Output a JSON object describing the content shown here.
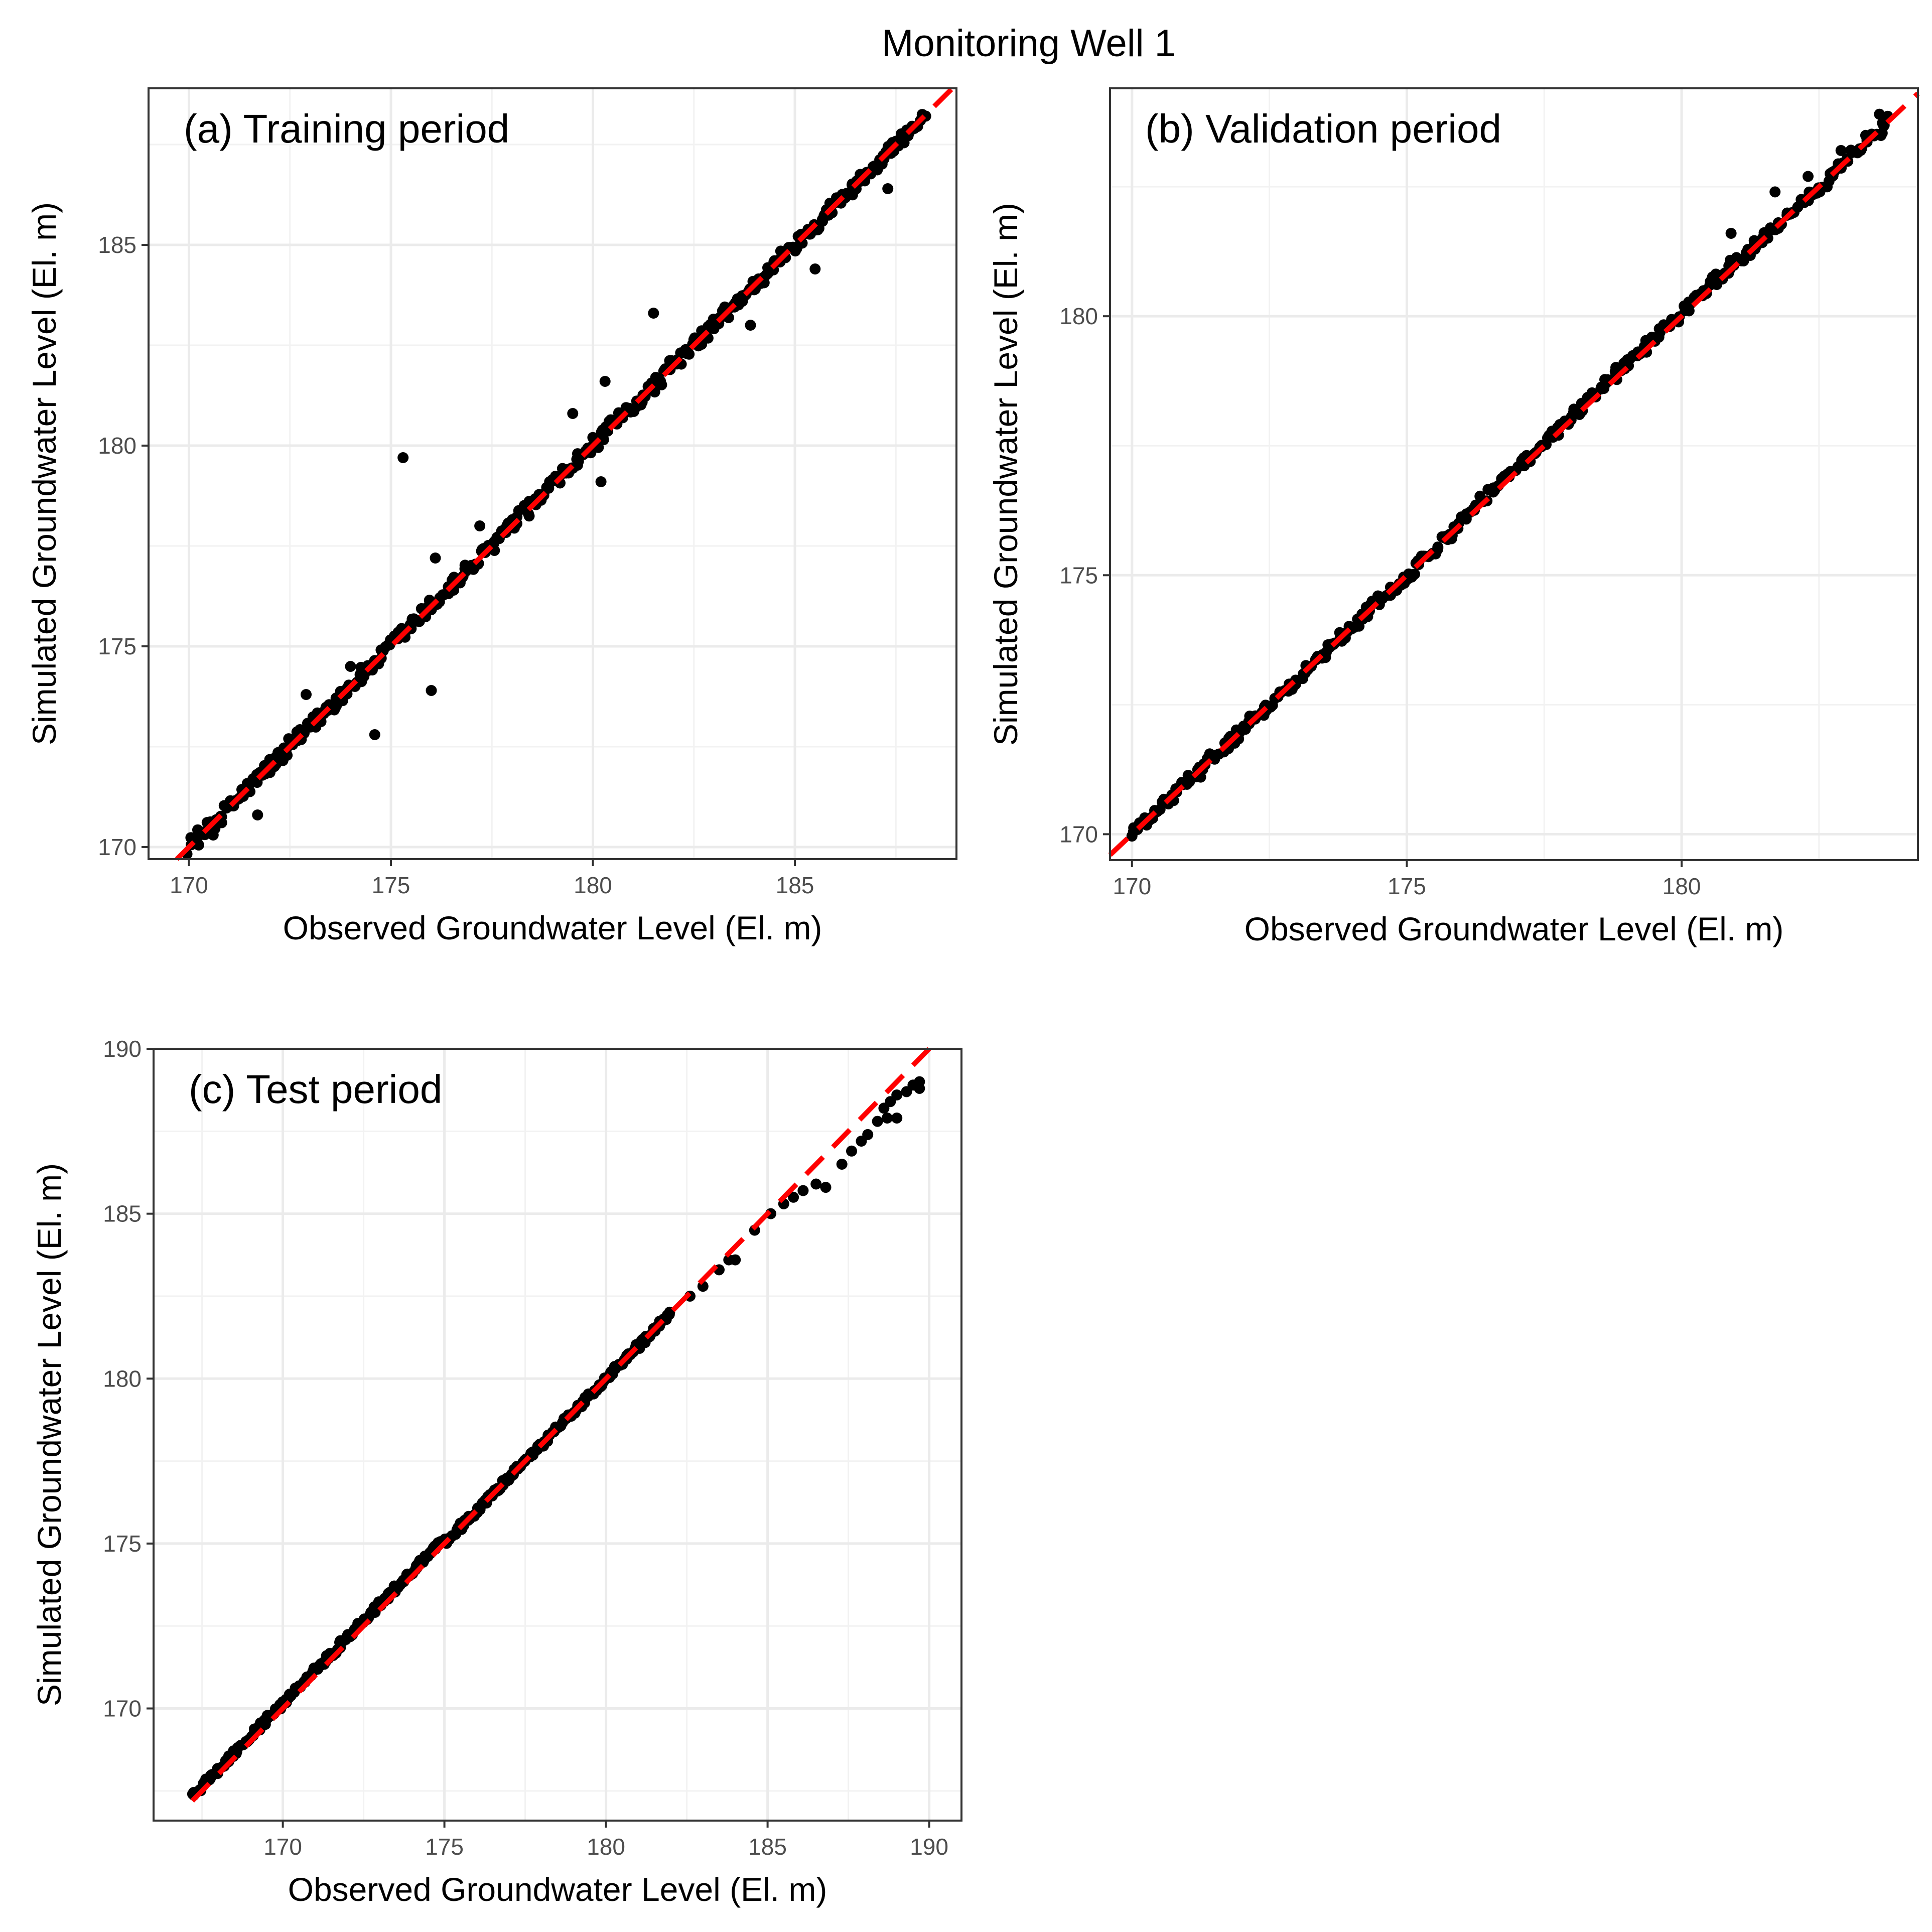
{
  "figure": {
    "title": "Monitoring Well 1"
  },
  "chart_data": [
    {
      "type": "scatter",
      "panel": "a",
      "title": "(a) Training period",
      "xlabel": "Observed Groundwater Level (El. m)",
      "ylabel": "Simulated Groundwater Level (El. m)",
      "xlim": [
        169.0,
        189.0
      ],
      "ylim": [
        169.7,
        188.9
      ],
      "xticks": [
        170,
        175,
        180,
        185
      ],
      "yticks": [
        170,
        175,
        180,
        185
      ],
      "grid": true,
      "reference_line": {
        "label": "1:1 line",
        "style": "dashed",
        "color": "#ff0000",
        "from": [
          169.0,
          169.0
        ],
        "to": [
          189.0,
          189.0
        ]
      },
      "point_color": "#000000",
      "series": [
        {
          "name": "Simulated vs Observed",
          "range": [
            170.0,
            188.2
          ],
          "scatter_amplitude": 0.18,
          "n_points": 420,
          "outliers": [
            [
              175.3,
              179.7
            ],
            [
              176.0,
              173.9
            ],
            [
              180.2,
              179.1
            ],
            [
              181.5,
              183.3
            ],
            [
              179.5,
              180.8
            ],
            [
              180.3,
              181.6
            ],
            [
              171.7,
              170.8
            ],
            [
              170.6,
              170.3
            ],
            [
              174.6,
              172.8
            ],
            [
              172.9,
              173.8
            ],
            [
              176.1,
              177.2
            ],
            [
              177.2,
              178.0
            ],
            [
              174.0,
              174.5
            ],
            [
              183.9,
              183.0
            ],
            [
              185.5,
              184.4
            ],
            [
              187.3,
              186.4
            ]
          ]
        }
      ]
    },
    {
      "type": "scatter",
      "panel": "b",
      "title": "(b) Validation period",
      "xlabel": "Observed Groundwater Level (El. m)",
      "ylabel": "Simulated Groundwater Level (El. m)",
      "xlim": [
        169.6,
        184.3
      ],
      "ylim": [
        169.5,
        184.4
      ],
      "xticks": [
        170,
        175,
        180
      ],
      "yticks": [
        170,
        175,
        180
      ],
      "grid": true,
      "reference_line": {
        "label": "1:1 line",
        "style": "dashed",
        "color": "#ff0000",
        "from": [
          169.5,
          169.5
        ],
        "to": [
          184.3,
          184.3
        ]
      },
      "point_color": "#000000",
      "series": [
        {
          "name": "Simulated vs Observed",
          "range": [
            170.0,
            183.8
          ],
          "scatter_amplitude": 0.1,
          "n_points": 380,
          "outliers": [
            [
              181.7,
              182.4
            ],
            [
              182.3,
              182.7
            ],
            [
              182.9,
              183.2
            ],
            [
              180.9,
              181.6
            ],
            [
              183.6,
              183.9
            ]
          ]
        }
      ]
    },
    {
      "type": "scatter",
      "panel": "c",
      "title": "(c) Test period",
      "xlabel": "Observed Groundwater Level (El. m)",
      "ylabel": "Simulated Groundwater Level (El. m)",
      "xlim": [
        166.0,
        191.0
      ],
      "ylim": [
        166.6,
        190.0
      ],
      "xticks": [
        170,
        175,
        180,
        185,
        190
      ],
      "yticks": [
        170,
        175,
        180,
        185,
        190
      ],
      "grid": true,
      "reference_line": {
        "label": "1:1 line",
        "style": "dashed",
        "color": "#ff0000",
        "from": [
          167.2,
          167.2
        ],
        "to": [
          190.0,
          190.0
        ]
      },
      "point_color": "#000000",
      "series": [
        {
          "name": "Simulated vs Observed",
          "range": [
            167.2,
            182.0
          ],
          "scatter_amplitude": 0.08,
          "n_points": 340,
          "sparse_points": [
            [
              182.6,
              182.5
            ],
            [
              183.0,
              182.8
            ],
            [
              183.5,
              183.3
            ],
            [
              183.8,
              183.6
            ],
            [
              184.0,
              183.6
            ],
            [
              184.6,
              184.5
            ],
            [
              185.1,
              185.0
            ],
            [
              185.5,
              185.3
            ],
            [
              185.8,
              185.5
            ],
            [
              186.1,
              185.7
            ],
            [
              186.5,
              185.9
            ],
            [
              186.8,
              185.8
            ],
            [
              187.3,
              186.5
            ],
            [
              187.6,
              186.9
            ],
            [
              187.9,
              187.2
            ],
            [
              188.1,
              187.4
            ],
            [
              188.4,
              187.8
            ],
            [
              188.6,
              188.2
            ],
            [
              188.8,
              188.4
            ],
            [
              189.0,
              188.6
            ],
            [
              189.3,
              188.7
            ],
            [
              189.5,
              188.9
            ],
            [
              189.7,
              189.0
            ],
            [
              188.7,
              187.9
            ],
            [
              189.0,
              187.9
            ],
            [
              189.7,
              188.8
            ]
          ]
        }
      ]
    }
  ]
}
